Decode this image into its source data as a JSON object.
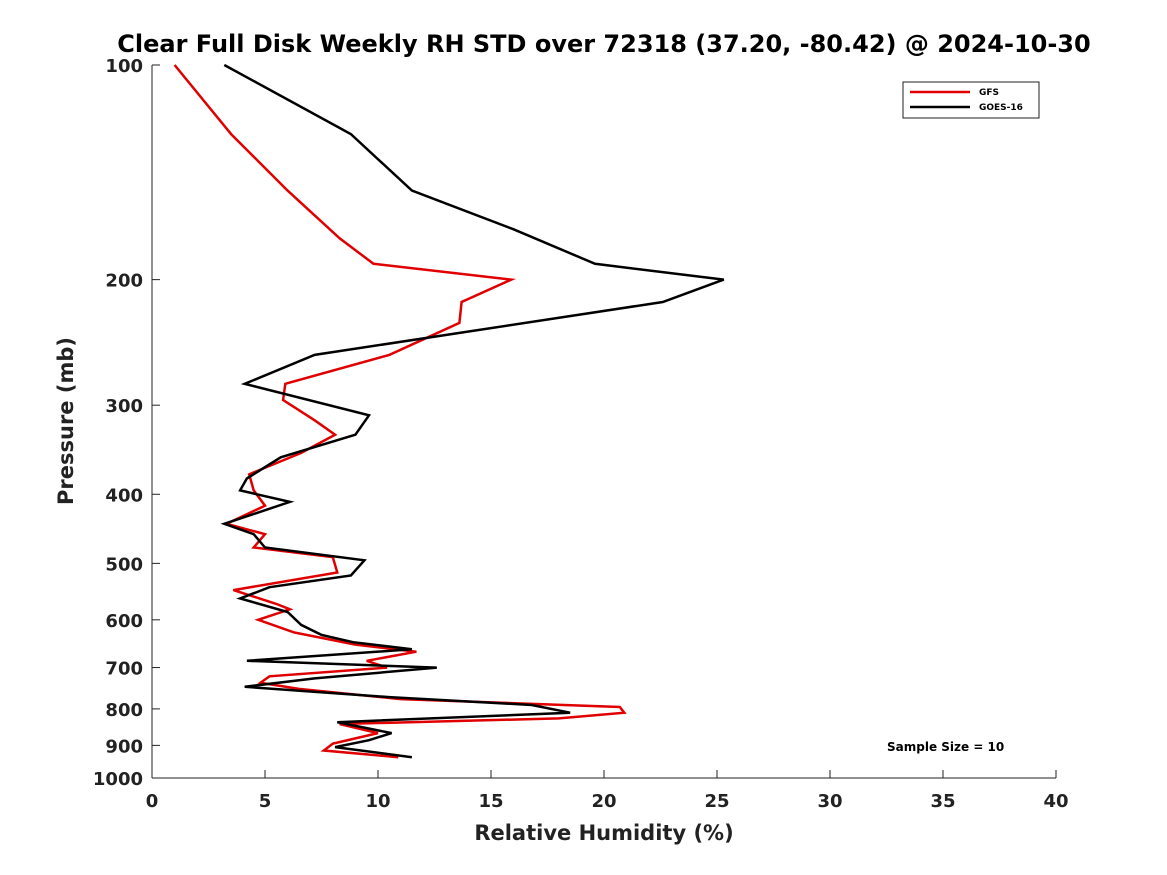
{
  "chart_data": {
    "type": "line",
    "title": "Clear Full Disk Weekly RH STD over 72318 (37.20, -80.42) @ 2024-10-30",
    "xlabel": "Relative Humidity (%)",
    "ylabel": "Pressure (mb)",
    "xlim": [
      0,
      40
    ],
    "ylim": [
      100,
      1000
    ],
    "y_scale": "log",
    "y_reversed": true,
    "x_ticks": [
      0,
      5,
      10,
      15,
      20,
      25,
      30,
      35,
      40
    ],
    "x_tick_labels": [
      "0",
      "5",
      "10",
      "15",
      "20",
      "25",
      "30",
      "35",
      "40"
    ],
    "y_ticks": [
      100,
      200,
      300,
      400,
      500,
      600,
      700,
      800,
      900,
      1000
    ],
    "y_tick_labels": [
      "100",
      "200",
      "300",
      "400",
      "500",
      "600",
      "700",
      "800",
      "900",
      "1000"
    ],
    "grid": false,
    "legend_position": "top-right",
    "annotation": "Sample Size = 10",
    "series": [
      {
        "name": "GFS",
        "color": "#e00000",
        "points": [
          [
            1.0,
            100
          ],
          [
            3.5,
            125
          ],
          [
            6.0,
            150
          ],
          [
            8.3,
            175
          ],
          [
            9.8,
            190
          ],
          [
            15.9,
            200
          ],
          [
            13.7,
            215
          ],
          [
            13.6,
            230
          ],
          [
            10.5,
            255
          ],
          [
            5.9,
            280
          ],
          [
            5.8,
            295
          ],
          [
            7.2,
            315
          ],
          [
            8.1,
            330
          ],
          [
            6.6,
            350
          ],
          [
            4.3,
            375
          ],
          [
            4.5,
            395
          ],
          [
            5.0,
            415
          ],
          [
            3.3,
            440
          ],
          [
            5.0,
            455
          ],
          [
            4.5,
            475
          ],
          [
            8.0,
            490
          ],
          [
            8.2,
            515
          ],
          [
            3.6,
            545
          ],
          [
            5.5,
            570
          ],
          [
            6.1,
            580
          ],
          [
            4.7,
            600
          ],
          [
            6.3,
            625
          ],
          [
            9.0,
            650
          ],
          [
            11.7,
            665
          ],
          [
            9.5,
            685
          ],
          [
            10.4,
            700
          ],
          [
            5.2,
            720
          ],
          [
            4.8,
            735
          ],
          [
            6.5,
            750
          ],
          [
            11.0,
            775
          ],
          [
            20.7,
            795
          ],
          [
            20.9,
            810
          ],
          [
            18.0,
            825
          ],
          [
            8.3,
            840
          ],
          [
            10.0,
            865
          ],
          [
            9.0,
            880
          ],
          [
            8.0,
            895
          ],
          [
            7.6,
            915
          ],
          [
            10.9,
            935
          ]
        ]
      },
      {
        "name": "GOES-16",
        "color": "#000000",
        "points": [
          [
            3.2,
            100
          ],
          [
            8.8,
            125
          ],
          [
            11.5,
            150
          ],
          [
            16.0,
            170
          ],
          [
            19.6,
            190
          ],
          [
            25.3,
            200
          ],
          [
            22.6,
            215
          ],
          [
            7.2,
            255
          ],
          [
            4.1,
            280
          ],
          [
            9.6,
            310
          ],
          [
            9.0,
            330
          ],
          [
            5.7,
            355
          ],
          [
            4.2,
            380
          ],
          [
            3.9,
            395
          ],
          [
            6.1,
            410
          ],
          [
            3.2,
            440
          ],
          [
            4.5,
            455
          ],
          [
            5.0,
            475
          ],
          [
            9.4,
            495
          ],
          [
            8.8,
            520
          ],
          [
            5.2,
            540
          ],
          [
            3.9,
            560
          ],
          [
            6.0,
            585
          ],
          [
            6.6,
            610
          ],
          [
            7.5,
            630
          ],
          [
            8.9,
            645
          ],
          [
            11.5,
            660
          ],
          [
            4.2,
            685
          ],
          [
            12.6,
            700
          ],
          [
            7.2,
            725
          ],
          [
            4.1,
            745
          ],
          [
            10.5,
            770
          ],
          [
            16.8,
            790
          ],
          [
            18.5,
            810
          ],
          [
            8.2,
            835
          ],
          [
            10.6,
            865
          ],
          [
            9.6,
            885
          ],
          [
            8.1,
            905
          ],
          [
            11.5,
            935
          ]
        ]
      }
    ]
  }
}
